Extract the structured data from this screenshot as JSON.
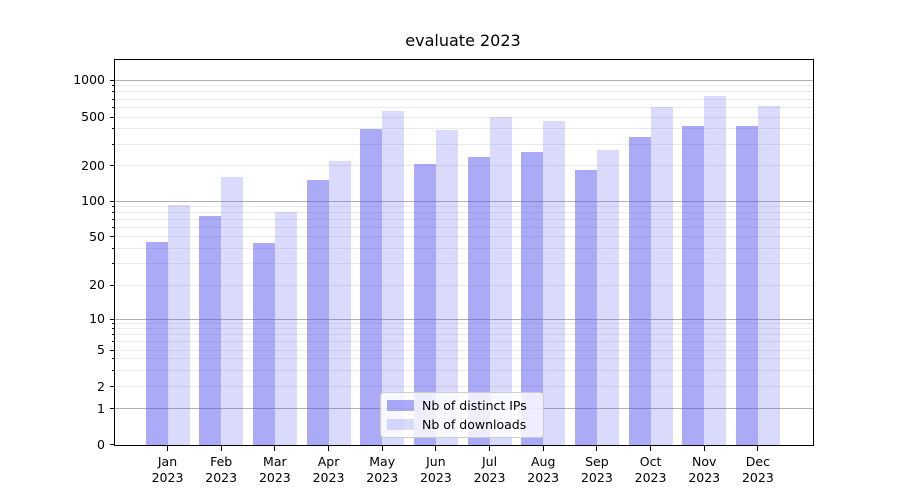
{
  "title": "evaluate 2023",
  "legend": {
    "position": "lower center",
    "items": [
      {
        "label": "Nb of distinct IPs",
        "color": "rgba(85,85,240,0.50)"
      },
      {
        "label": "Nb of downloads",
        "color": "rgba(85,85,240,0.22)"
      }
    ]
  },
  "y_axis": {
    "tick_labels": [
      "1000",
      "500",
      "200",
      "100",
      "50",
      "20",
      "10",
      "5",
      "2",
      "1",
      "0"
    ]
  },
  "chart_data": {
    "type": "bar",
    "title": "evaluate 2023",
    "categories": [
      "Jan 2023",
      "Feb 2023",
      "Mar 2023",
      "Apr 2023",
      "May 2023",
      "Jun 2023",
      "Jul 2023",
      "Aug 2023",
      "Sep 2023",
      "Oct 2023",
      "Nov 2023",
      "Dec 2023"
    ],
    "series": [
      {
        "name": "Nb of distinct IPs",
        "color": "rgba(85,85,240,0.50)",
        "values": [
          45,
          74,
          44,
          150,
          400,
          205,
          235,
          260,
          182,
          345,
          425,
          425
        ]
      },
      {
        "name": "Nb of downloads",
        "color": "rgba(85,85,240,0.22)",
        "values": [
          93,
          160,
          81,
          218,
          560,
          390,
          500,
          460,
          270,
          600,
          740,
          610
        ]
      }
    ],
    "xlabel": "",
    "ylabel": "",
    "yscale": "symlog",
    "yticks": [
      0,
      1,
      2,
      5,
      10,
      20,
      50,
      100,
      200,
      500,
      1000
    ],
    "ylim": [
      0,
      1300
    ],
    "grid": true,
    "legend_position": "lower center"
  }
}
